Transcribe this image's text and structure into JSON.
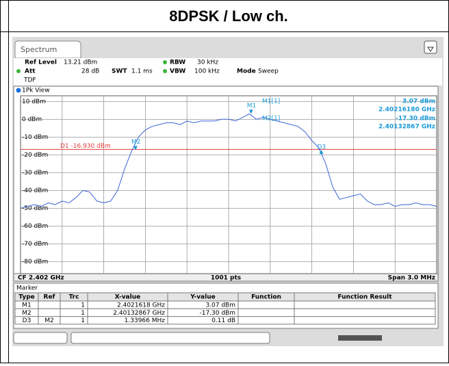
{
  "header": {
    "title": "8DPSK / Low ch."
  },
  "tab": "Spectrum",
  "settings": {
    "ref_level_label": "Ref Level",
    "ref_level": "13.21 dBm",
    "att_label": "Att",
    "att": "28 dB",
    "swt_label": "SWT",
    "swt": "1.1 ms",
    "rbw_label": "RBW",
    "rbw": "30 kHz",
    "vbw_label": "VBW",
    "vbw": "100 kHz",
    "mode_label": "Mode",
    "mode": "Sweep",
    "tdf": "TDF"
  },
  "view": "1Pk View",
  "readout": [
    {
      "name": "M1[1]",
      "level": "3.07 dBm",
      "freq": "2.40216180 GHz"
    },
    {
      "name": "M2[1]",
      "level": "-17.30 dBm",
      "freq": "2.40132867 GHz"
    }
  ],
  "footer": {
    "center_freq": "CF 2.402 GHz",
    "points": "1001 pts",
    "span": "Span 3.0 MHz"
  },
  "chart_data": {
    "type": "line",
    "x": [
      2.4005,
      2.40055,
      2.4006,
      2.40065,
      2.4007,
      2.40075,
      2.4008,
      2.40085,
      2.4009,
      2.40095,
      2.401,
      2.40105,
      2.4011,
      2.40115,
      2.4012,
      2.40125,
      2.4013,
      2.40135,
      2.4014,
      2.40145,
      2.4015,
      2.40155,
      2.4016,
      2.40165,
      2.4017,
      2.40175,
      2.4018,
      2.40185,
      2.4019,
      2.40195,
      2.402,
      2.40205,
      2.4021,
      2.40215,
      2.4022,
      2.40225,
      2.4023,
      2.40235,
      2.4024,
      2.40245,
      2.4025,
      2.40255,
      2.4026,
      2.40265,
      2.4027,
      2.40275,
      2.4028,
      2.40285,
      2.4029,
      2.40295,
      2.403,
      2.40305,
      2.4031,
      2.40315,
      2.4032,
      2.40325,
      2.4033,
      2.40335,
      2.4034,
      2.40345,
      2.4035
    ],
    "series": [
      {
        "name": "1Pk",
        "color": "#3a62d6",
        "values": [
          -50,
          -49,
          -48,
          -49,
          -47,
          -48,
          -46,
          -47,
          -44,
          -40,
          -41,
          -46,
          -47,
          -46,
          -40,
          -28,
          -18,
          -10,
          -6,
          -4,
          -3,
          -2,
          -2,
          -3,
          -1,
          -2,
          -1,
          -1,
          -1,
          0,
          0,
          -1,
          1,
          3,
          0,
          1,
          0,
          -1,
          -2,
          -3,
          -4,
          -7,
          -12,
          -16,
          -25,
          -38,
          -45,
          -44,
          -43,
          -42,
          -46,
          -48,
          -48,
          -47,
          -49,
          -48,
          -48,
          -47,
          -48,
          -48,
          -49
        ]
      }
    ],
    "xlim": [
      2.4005,
      2.4035
    ],
    "ylim": [
      -86.79,
      13.21
    ],
    "yticks": [
      {
        "value": 10,
        "label": "10 dBm"
      },
      {
        "value": 0,
        "label": "0 dBm"
      },
      {
        "value": -10,
        "label": "-10 dBm"
      },
      {
        "value": -20,
        "label": "-20 dBm"
      },
      {
        "value": -30,
        "label": "-30 dBm"
      },
      {
        "value": -40,
        "label": "-40 dBm"
      },
      {
        "value": -50,
        "label": "-50 dBm"
      },
      {
        "value": -60,
        "label": "-60 dBm"
      },
      {
        "value": -70,
        "label": "-70 dBm"
      },
      {
        "value": -80,
        "label": "-80 dBm"
      }
    ],
    "x_divisions": 10,
    "grid": true,
    "display_line": {
      "label": "D1 -16.930 dBm",
      "value": -16.93,
      "color": "#e03a3a"
    },
    "markers": [
      {
        "name": "M1",
        "x": 2.4021618,
        "y": 3.07
      },
      {
        "name": "M2",
        "x": 2.40132867,
        "y": -17.3
      },
      {
        "name": "D3",
        "x": 2.40266833,
        "y": -17.19
      }
    ],
    "marker_color": "#1a9ad6"
  },
  "marker_table": {
    "title": "Marker",
    "headers": [
      "Type",
      "Ref",
      "Trc",
      "X-value",
      "Y-value",
      "Function",
      "Function Result"
    ],
    "rows": [
      {
        "type": "M1",
        "trc": 1,
        "x": "2.4021618 GHz",
        "y": "3.07 dBm"
      },
      {
        "type": "M2",
        "trc": 1,
        "x": "2.40132867 GHz",
        "y": "-17.30 dBm"
      },
      {
        "type": "D3",
        "ref": "M2",
        "trc": 1,
        "x": "1.33966 MHz",
        "y": "0.11 dB"
      }
    ]
  }
}
